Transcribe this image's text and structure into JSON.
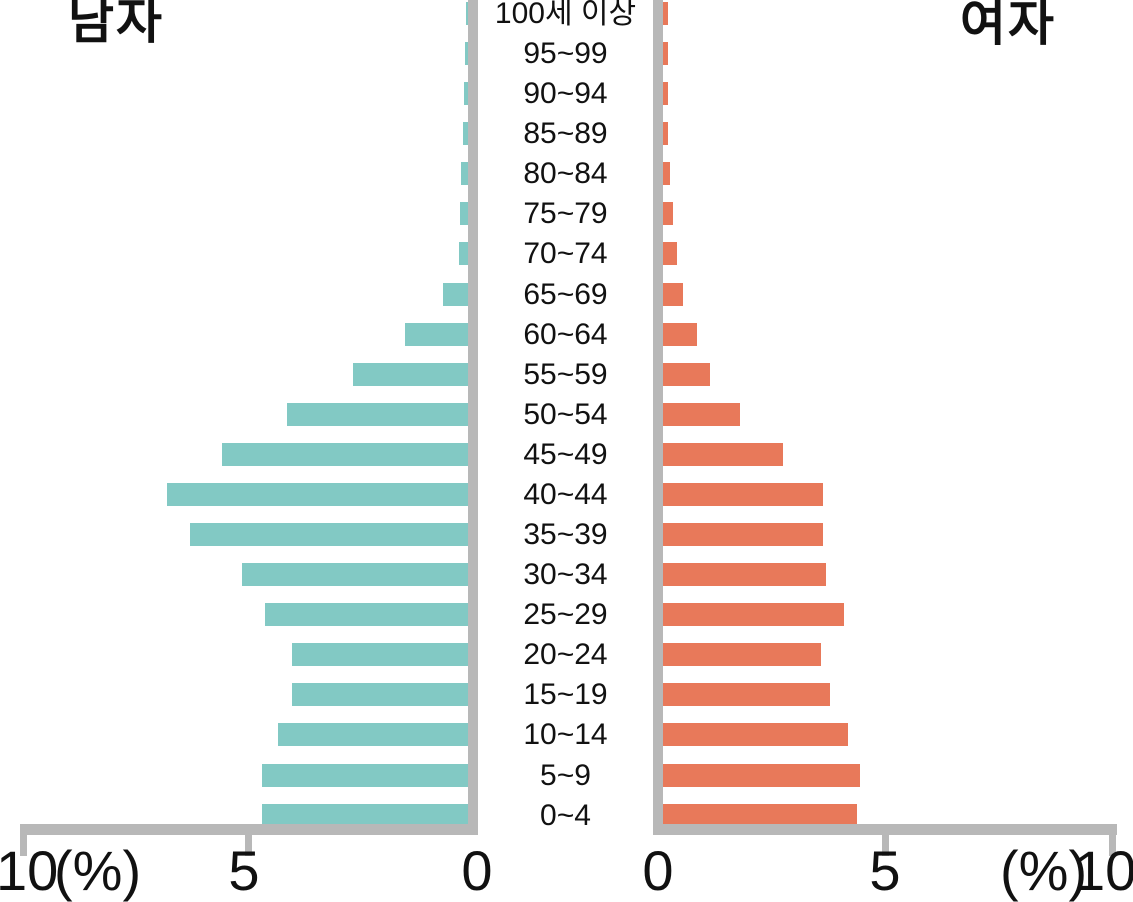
{
  "chart_data": {
    "type": "bar",
    "subtype": "population-pyramid",
    "title": "",
    "left_title": "남자",
    "right_title": "여자",
    "unit": "(%)",
    "age_groups": [
      "100세 이상",
      "95~99",
      "90~94",
      "85~89",
      "80~84",
      "75~79",
      "70~74",
      "65~69",
      "60~64",
      "55~59",
      "50~54",
      "45~49",
      "40~44",
      "35~39",
      "30~34",
      "25~29",
      "20~24",
      "15~19",
      "10~14",
      "5~9",
      "0~4"
    ],
    "series": [
      {
        "name": "남자",
        "side": "left",
        "color": "#82c9c4",
        "values": [
          0.05,
          0.07,
          0.08,
          0.1,
          0.15,
          0.17,
          0.2,
          0.55,
          1.4,
          2.55,
          4.0,
          5.45,
          6.65,
          6.15,
          5.0,
          4.5,
          3.9,
          3.9,
          4.2,
          4.55,
          4.55
        ]
      },
      {
        "name": "여자",
        "side": "right",
        "color": "#e8795a",
        "values": [
          0.1,
          0.1,
          0.1,
          0.12,
          0.15,
          0.22,
          0.3,
          0.45,
          0.75,
          1.05,
          1.7,
          2.65,
          3.55,
          3.55,
          3.6,
          4.0,
          3.5,
          3.7,
          4.1,
          4.35,
          4.3
        ]
      }
    ],
    "x_axis": {
      "max_percent": 10,
      "left_tick_labels": [
        "10",
        "5",
        "0"
      ],
      "right_tick_labels": [
        "0",
        "5",
        "10"
      ],
      "unit": "(%)",
      "grid": false
    },
    "legend_position": "none"
  },
  "colors": {
    "male": "#82c9c4",
    "female": "#e8795a",
    "axis": "#b8b8b8",
    "text": "#111111",
    "background": "#ffffff"
  }
}
